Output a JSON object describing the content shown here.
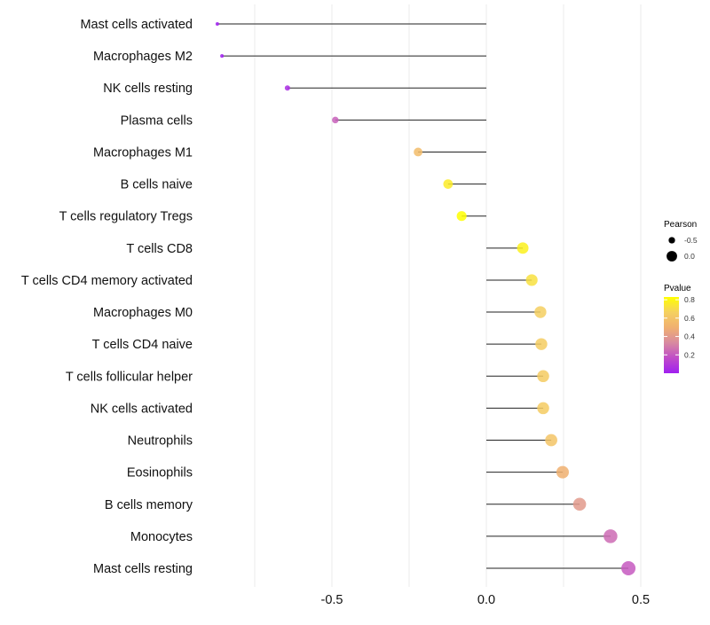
{
  "chart_data": {
    "type": "lollipop",
    "xlabel": "",
    "ylabel": "",
    "xlim": [
      -0.92,
      0.58
    ],
    "xticks": [
      -0.5,
      0.0,
      0.5
    ],
    "xtick_labels": [
      "-0.5",
      "0.0",
      "0.5"
    ],
    "grid": true,
    "categories": [
      "Mast cells activated",
      "Macrophages M2",
      "NK cells resting",
      "Plasma cells",
      "Macrophages M1",
      "B cells naive",
      "T cells regulatory  Tregs ",
      "T cells CD8",
      "T cells CD4 memory activated",
      "Macrophages M0",
      "T cells CD4 naive",
      "T cells follicular helper",
      "NK cells activated",
      "Neutrophils",
      "Eosinophils",
      "B cells memory",
      "Monocytes",
      "Mast cells resting"
    ],
    "pearson": [
      -0.871,
      -0.856,
      -0.644,
      -0.489,
      -0.221,
      -0.124,
      -0.08,
      0.118,
      0.147,
      0.175,
      0.178,
      0.184,
      0.184,
      0.21,
      0.247,
      0.302,
      0.402,
      0.46
    ],
    "pvalue": [
      0.0,
      0.0,
      0.05,
      0.22,
      0.56,
      0.76,
      0.84,
      0.78,
      0.72,
      0.66,
      0.65,
      0.64,
      0.64,
      0.6,
      0.5,
      0.4,
      0.25,
      0.2
    ],
    "legend": {
      "placement": "right",
      "size_title": "Pearson",
      "size_entries": [
        {
          "label": "-0.5",
          "value": -0.5
        },
        {
          "label": "0.0",
          "value": 0.0
        }
      ],
      "color_title": "Pvalue",
      "color_ticks": [
        {
          "label": "0.8",
          "value": 0.8
        },
        {
          "label": "0.6",
          "value": 0.6
        },
        {
          "label": "0.4",
          "value": 0.4
        },
        {
          "label": "0.2",
          "value": 0.2
        }
      ],
      "color_range": [
        0.0,
        0.83
      ],
      "color_stops": [
        "#a020f0",
        "#c04cc8",
        "#d88aa0",
        "#f0b070",
        "#f5d060",
        "#ffff00"
      ]
    }
  }
}
